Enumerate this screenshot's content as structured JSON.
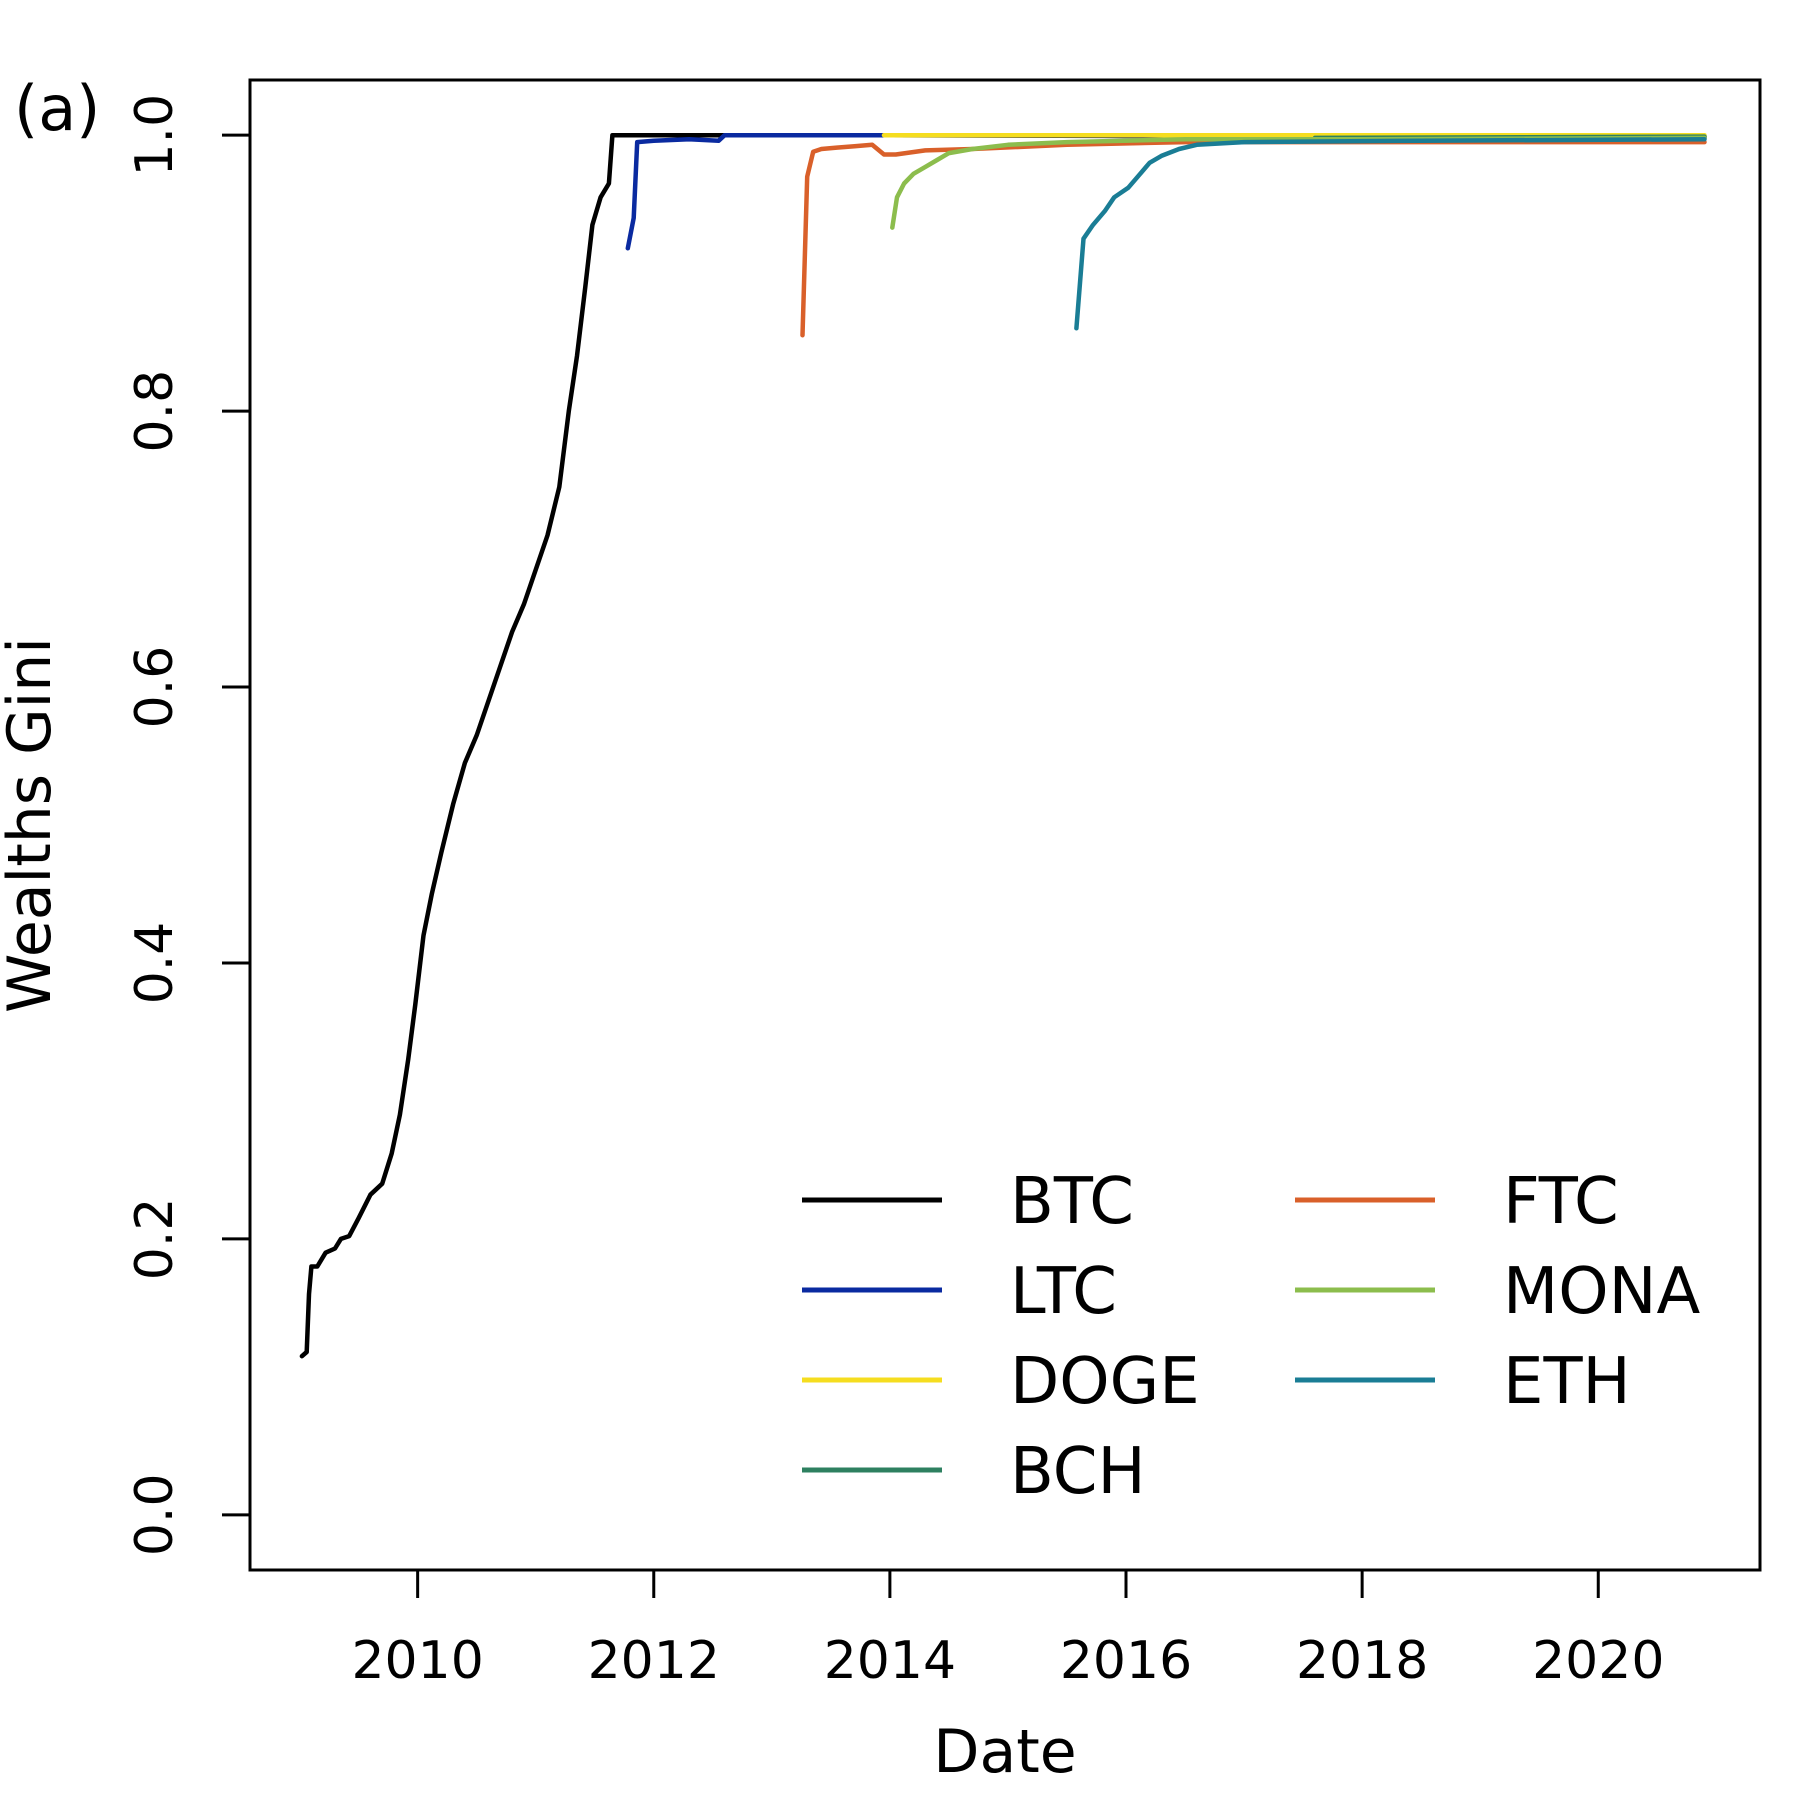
{
  "panel_label": "(a)",
  "chart_data": {
    "type": "line",
    "title": "",
    "xlabel": "Date",
    "ylabel": "Wealths Gini",
    "xlim": [
      2008.58,
      2021.37
    ],
    "ylim": [
      -0.04,
      1.04
    ],
    "xticks": [
      2010,
      2012,
      2014,
      2016,
      2018,
      2020
    ],
    "xtick_labels": [
      "2010",
      "2012",
      "2014",
      "2016",
      "2018",
      "2020"
    ],
    "yticks": [
      0.0,
      0.2,
      0.4,
      0.6,
      0.8,
      1.0
    ],
    "ytick_labels": [
      "0.0",
      "0.2",
      "0.4",
      "0.6",
      "0.8",
      "1.0"
    ],
    "legend_position": "bottom-right",
    "series": [
      {
        "name": "BTC",
        "color": "#000000",
        "points": [
          [
            2009.02,
            0.115
          ],
          [
            2009.06,
            0.118
          ],
          [
            2009.08,
            0.16
          ],
          [
            2009.1,
            0.18
          ],
          [
            2009.15,
            0.18
          ],
          [
            2009.22,
            0.19
          ],
          [
            2009.3,
            0.193
          ],
          [
            2009.35,
            0.2
          ],
          [
            2009.42,
            0.202
          ],
          [
            2009.5,
            0.215
          ],
          [
            2009.6,
            0.232
          ],
          [
            2009.7,
            0.24
          ],
          [
            2009.78,
            0.262
          ],
          [
            2009.85,
            0.29
          ],
          [
            2009.92,
            0.33
          ],
          [
            2009.98,
            0.37
          ],
          [
            2010.05,
            0.42
          ],
          [
            2010.12,
            0.45
          ],
          [
            2010.2,
            0.48
          ],
          [
            2010.3,
            0.515
          ],
          [
            2010.4,
            0.545
          ],
          [
            2010.5,
            0.565
          ],
          [
            2010.6,
            0.59
          ],
          [
            2010.7,
            0.615
          ],
          [
            2010.8,
            0.64
          ],
          [
            2010.9,
            0.66
          ],
          [
            2011.0,
            0.685
          ],
          [
            2011.1,
            0.71
          ],
          [
            2011.2,
            0.745
          ],
          [
            2011.28,
            0.8
          ],
          [
            2011.35,
            0.84
          ],
          [
            2011.42,
            0.89
          ],
          [
            2011.48,
            0.935
          ],
          [
            2011.55,
            0.955
          ],
          [
            2011.62,
            0.965
          ],
          [
            2011.65,
            1.0
          ],
          [
            2014.0,
            1.0
          ],
          [
            2020.9,
            0.998
          ]
        ]
      },
      {
        "name": "LTC",
        "color": "#0a2aa0",
        "points": [
          [
            2011.78,
            0.918
          ],
          [
            2011.83,
            0.94
          ],
          [
            2011.86,
            0.995
          ],
          [
            2012.0,
            0.996
          ],
          [
            2012.3,
            0.997
          ],
          [
            2012.55,
            0.996
          ],
          [
            2012.6,
            1.0
          ],
          [
            2014.0,
            1.0
          ],
          [
            2020.9,
            0.999
          ]
        ]
      },
      {
        "name": "DOGE",
        "color": "#f5dd1f",
        "points": [
          [
            2013.95,
            1.0
          ],
          [
            2020.9,
            1.0
          ]
        ]
      },
      {
        "name": "BCH",
        "color": "#2e8060",
        "points": [
          [
            2017.6,
            0.998
          ],
          [
            2020.9,
            0.999
          ]
        ]
      },
      {
        "name": "FTC",
        "color": "#d9602a",
        "points": [
          [
            2013.26,
            0.855
          ],
          [
            2013.3,
            0.97
          ],
          [
            2013.35,
            0.988
          ],
          [
            2013.42,
            0.99
          ],
          [
            2013.55,
            0.991
          ],
          [
            2013.7,
            0.992
          ],
          [
            2013.85,
            0.993
          ],
          [
            2013.95,
            0.986
          ],
          [
            2014.05,
            0.986
          ],
          [
            2014.3,
            0.989
          ],
          [
            2014.7,
            0.99
          ],
          [
            2015.5,
            0.993
          ],
          [
            2016.5,
            0.995
          ],
          [
            2018.0,
            0.995
          ],
          [
            2020.9,
            0.995
          ]
        ]
      },
      {
        "name": "MONA",
        "color": "#8cbd4d",
        "points": [
          [
            2014.02,
            0.933
          ],
          [
            2014.06,
            0.955
          ],
          [
            2014.12,
            0.965
          ],
          [
            2014.2,
            0.972
          ],
          [
            2014.3,
            0.977
          ],
          [
            2014.4,
            0.982
          ],
          [
            2014.5,
            0.987
          ],
          [
            2014.7,
            0.99
          ],
          [
            2015.0,
            0.993
          ],
          [
            2015.5,
            0.995
          ],
          [
            2016.5,
            0.997
          ],
          [
            2018.0,
            0.997
          ],
          [
            2020.9,
            0.998
          ]
        ]
      },
      {
        "name": "ETH",
        "color": "#1a7d95",
        "points": [
          [
            2015.58,
            0.86
          ],
          [
            2015.64,
            0.925
          ],
          [
            2015.72,
            0.935
          ],
          [
            2015.82,
            0.945
          ],
          [
            2015.9,
            0.955
          ],
          [
            2016.02,
            0.962
          ],
          [
            2016.12,
            0.972
          ],
          [
            2016.2,
            0.98
          ],
          [
            2016.3,
            0.985
          ],
          [
            2016.45,
            0.99
          ],
          [
            2016.6,
            0.993
          ],
          [
            2017.0,
            0.995
          ],
          [
            2018.5,
            0.996
          ],
          [
            2020.9,
            0.997
          ]
        ]
      }
    ]
  }
}
